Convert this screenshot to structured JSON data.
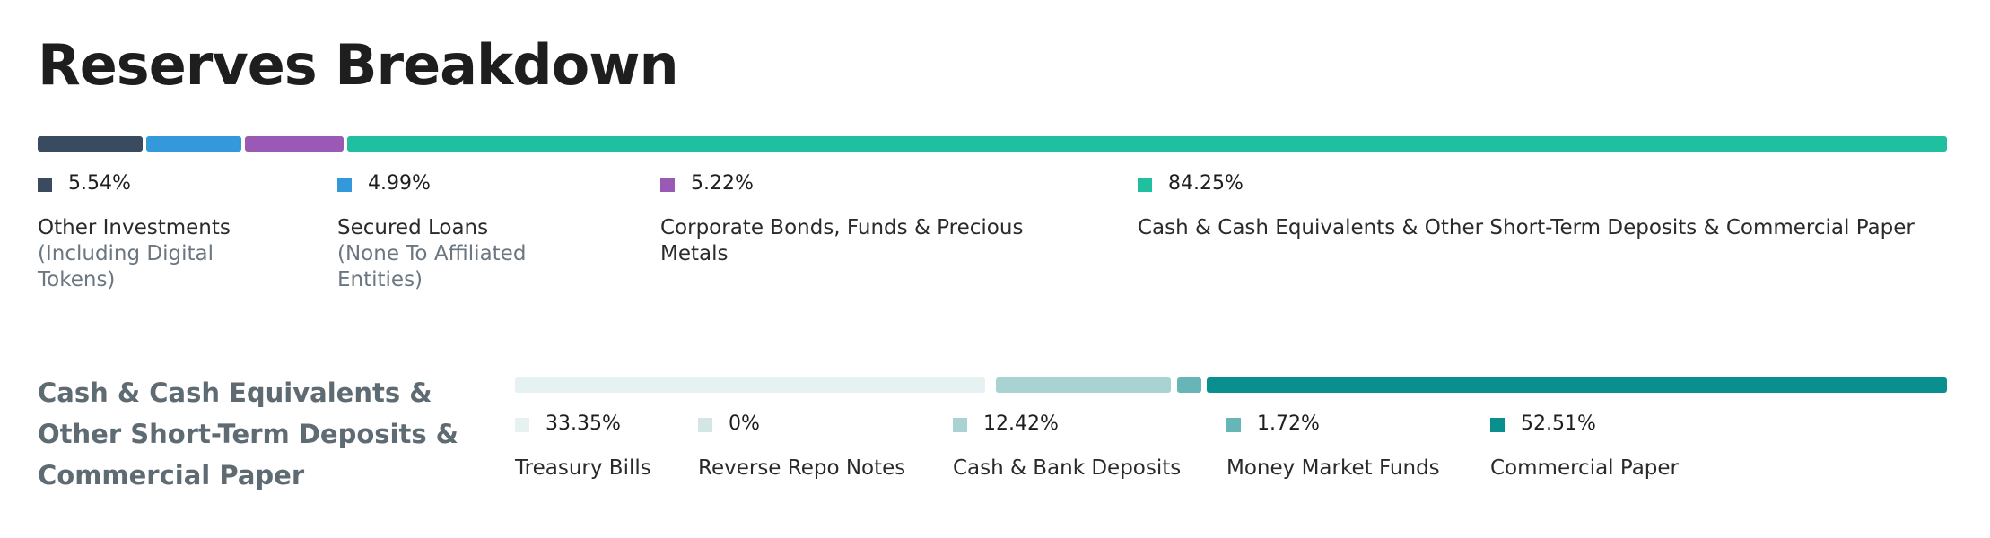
{
  "title": "Reserves Breakdown",
  "chart_data": [
    {
      "type": "bar",
      "orientation": "stacked-horizontal",
      "series": [
        {
          "name": "Other Investments",
          "sublabel": "(Including Digital Tokens)",
          "value": 5.54,
          "value_label": "5.54%",
          "color": "#3a4a5f"
        },
        {
          "name": "Secured Loans",
          "sublabel": "(None To Affiliated Entities)",
          "value": 4.99,
          "value_label": "4.99%",
          "color": "#3399db"
        },
        {
          "name": "Corporate Bonds, Funds & Precious Metals",
          "sublabel": "",
          "value": 5.22,
          "value_label": "5.22%",
          "color": "#9b59b6"
        },
        {
          "name": "Cash & Cash Equivalents & Other Short-Term Deposits & Commercial Paper",
          "sublabel": "",
          "value": 84.25,
          "value_label": "84.25%",
          "color": "#20bf9f"
        }
      ]
    },
    {
      "type": "bar",
      "orientation": "stacked-horizontal",
      "title": "Cash & Cash Equivalents & Other Short-Term Deposits & Commercial Paper",
      "series": [
        {
          "name": "Treasury Bills",
          "value": 33.35,
          "value_label": "33.35%",
          "color": "#e6f2f2"
        },
        {
          "name": "Reverse Repo Notes",
          "value": 0,
          "value_label": "0%",
          "color": "#d3e6e5"
        },
        {
          "name": "Cash & Bank Deposits",
          "value": 12.42,
          "value_label": "12.42%",
          "color": "#a8d3d2"
        },
        {
          "name": "Money Market Funds",
          "value": 1.72,
          "value_label": "1.72%",
          "color": "#66b5b7"
        },
        {
          "name": "Commercial Paper",
          "value": 52.51,
          "value_label": "52.51%",
          "color": "#0a8f8f"
        }
      ]
    }
  ]
}
